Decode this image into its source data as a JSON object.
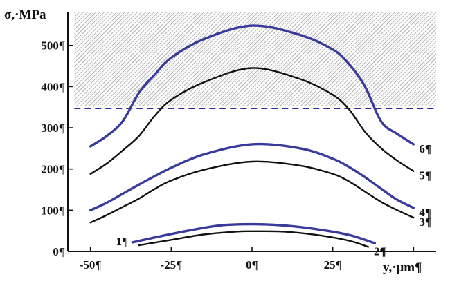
{
  "chart_data": {
    "type": "line",
    "title": "",
    "ylabel": "σ,·MPa",
    "xlabel": "y,·μm¶",
    "xlim": [
      -57,
      57
    ],
    "ylim": [
      0,
      580
    ],
    "xticks": [
      {
        "value": -50,
        "label": "-50¶"
      },
      {
        "value": -25,
        "label": "-25¶"
      },
      {
        "value": 0,
        "label": "0¶"
      },
      {
        "value": 25,
        "label": "25¶"
      },
      {
        "value": 50,
        "label": ""
      }
    ],
    "yticks": [
      {
        "value": 0,
        "label": "0¶"
      },
      {
        "value": 100,
        "label": "100¶"
      },
      {
        "value": 200,
        "label": "200¶"
      },
      {
        "value": 300,
        "label": "300¶"
      },
      {
        "value": 400,
        "label": "400¶"
      },
      {
        "value": 500,
        "label": "500¶"
      }
    ],
    "grid": false,
    "hatched_region": {
      "x_range": [
        -55,
        57
      ],
      "y_range": [
        352,
        580
      ]
    },
    "reference_line": {
      "y": 347,
      "style": "dashed",
      "color": "#2b2b9a"
    },
    "colors": {
      "blue": "#3a3a9c",
      "black": "#111111",
      "hatch": "#6b6b6b"
    },
    "series": [
      {
        "label": "1¶",
        "color": "#3a3a9c",
        "label_side": "left",
        "points": [
          [
            -37,
            22
          ],
          [
            -30,
            34
          ],
          [
            -20,
            50
          ],
          [
            -10,
            63
          ],
          [
            0,
            66
          ],
          [
            10,
            63
          ],
          [
            20,
            54
          ],
          [
            30,
            40
          ],
          [
            38,
            20
          ]
        ]
      },
      {
        "label": "2¶",
        "color": "#111111",
        "label_side": "right",
        "points": [
          [
            -35,
            15
          ],
          [
            -25,
            28
          ],
          [
            -15,
            41
          ],
          [
            -5,
            48
          ],
          [
            0,
            49
          ],
          [
            10,
            48
          ],
          [
            20,
            40
          ],
          [
            30,
            26
          ],
          [
            36,
            11
          ]
        ]
      },
      {
        "label": "3¶",
        "color": "#111111",
        "label_side": "right",
        "points": [
          [
            -50,
            70
          ],
          [
            -45,
            88
          ],
          [
            -40,
            108
          ],
          [
            -35,
            128
          ],
          [
            -30,
            152
          ],
          [
            -25,
            172
          ],
          [
            -15,
            198
          ],
          [
            0,
            218
          ],
          [
            15,
            208
          ],
          [
            25,
            188
          ],
          [
            30,
            170
          ],
          [
            35,
            145
          ],
          [
            40,
            120
          ],
          [
            45,
            100
          ],
          [
            50,
            82
          ]
        ]
      },
      {
        "label": "4¶",
        "color": "#3a3a9c",
        "label_side": "right",
        "points": [
          [
            -50,
            100
          ],
          [
            -45,
            118
          ],
          [
            -40,
            140
          ],
          [
            -35,
            162
          ],
          [
            -30,
            183
          ],
          [
            -25,
            203
          ],
          [
            -15,
            235
          ],
          [
            0,
            260
          ],
          [
            15,
            250
          ],
          [
            25,
            225
          ],
          [
            30,
            205
          ],
          [
            35,
            180
          ],
          [
            40,
            152
          ],
          [
            45,
            125
          ],
          [
            50,
            106
          ]
        ]
      },
      {
        "label": "5¶",
        "color": "#111111",
        "label_side": "right",
        "points": [
          [
            -50,
            188
          ],
          [
            -45,
            213
          ],
          [
            -40,
            245
          ],
          [
            -35,
            280
          ],
          [
            -30,
            330
          ],
          [
            -25,
            368
          ],
          [
            -15,
            410
          ],
          [
            0,
            445
          ],
          [
            15,
            418
          ],
          [
            25,
            380
          ],
          [
            30,
            345
          ],
          [
            35,
            290
          ],
          [
            40,
            250
          ],
          [
            45,
            220
          ],
          [
            50,
            195
          ]
        ]
      },
      {
        "label": "6¶",
        "color": "#3a3a9c",
        "label_side": "right",
        "points": [
          [
            -50,
            255
          ],
          [
            -45,
            280
          ],
          [
            -40,
            316
          ],
          [
            -35,
            385
          ],
          [
            -30,
            430
          ],
          [
            -25,
            470
          ],
          [
            -15,
            515
          ],
          [
            0,
            548
          ],
          [
            15,
            525
          ],
          [
            25,
            490
          ],
          [
            30,
            455
          ],
          [
            35,
            400
          ],
          [
            40,
            315
          ],
          [
            45,
            285
          ],
          [
            50,
            260
          ]
        ]
      }
    ]
  }
}
